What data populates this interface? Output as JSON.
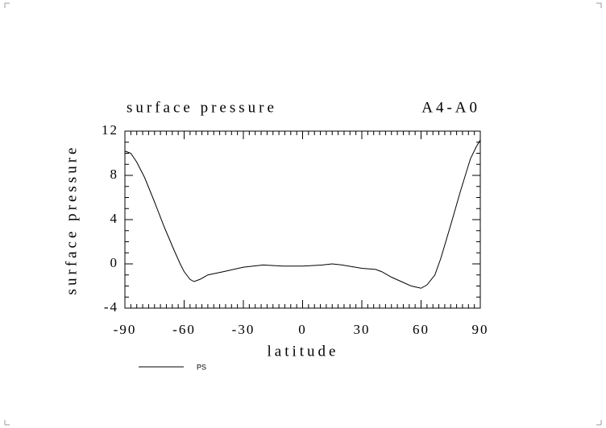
{
  "chart_data": {
    "type": "line",
    "title": "surface pressure",
    "subtitle": "A4-A0",
    "xlabel": "latitude",
    "ylabel": "surface pressure",
    "x": [
      -90,
      -87,
      -84,
      -80,
      -75,
      -70,
      -65,
      -62,
      -60,
      -57,
      -55,
      -52,
      -48,
      -40,
      -30,
      -20,
      -10,
      0,
      10,
      15,
      20,
      30,
      37,
      40,
      45,
      50,
      55,
      60,
      63,
      67,
      70,
      75,
      80,
      85,
      88,
      90
    ],
    "series": [
      {
        "name": "PS",
        "color": "#000000",
        "values": [
          10.2,
          10.0,
          9.2,
          7.8,
          5.6,
          3.3,
          1.2,
          0.0,
          -0.7,
          -1.4,
          -1.6,
          -1.4,
          -1.0,
          -0.7,
          -0.3,
          -0.1,
          -0.2,
          -0.2,
          -0.1,
          0,
          -0.1,
          -0.4,
          -0.5,
          -0.7,
          -1.2,
          -1.6,
          -2.0,
          -2.2,
          -1.9,
          -1.0,
          0.5,
          3.5,
          6.6,
          9.5,
          10.6,
          11.2
        ]
      }
    ],
    "xlim": [
      -90,
      90
    ],
    "xticks": [
      -90,
      -60,
      -30,
      0,
      30,
      60,
      90
    ],
    "ylim": [
      -4,
      12
    ],
    "yticks": [
      -4,
      0,
      4,
      8,
      12
    ]
  }
}
